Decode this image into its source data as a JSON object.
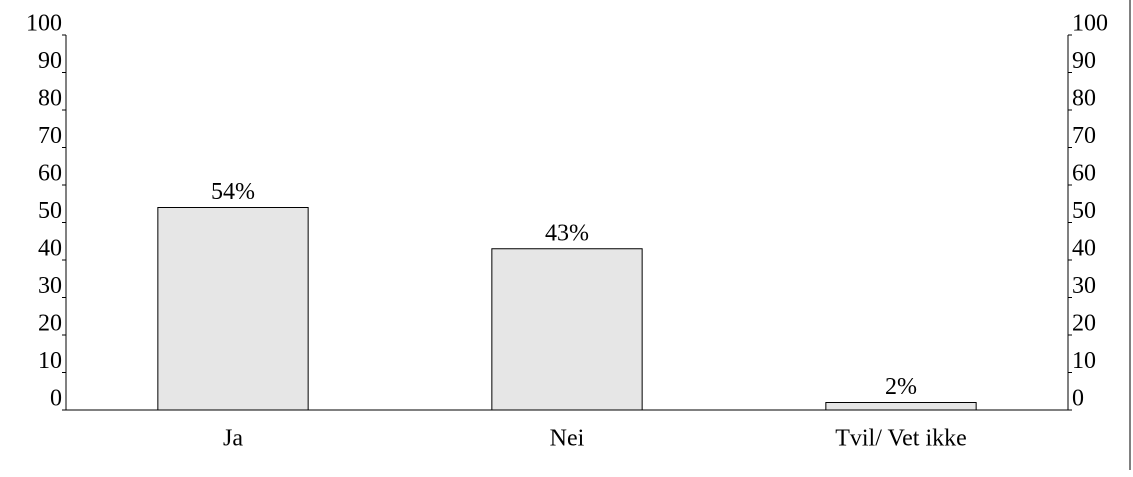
{
  "chart_data": {
    "type": "bar",
    "categories": [
      "Ja",
      "Nei",
      "Tvil/ Vet ikke"
    ],
    "values": [
      54,
      43,
      2
    ],
    "value_labels": [
      "54%",
      "43%",
      "2%"
    ],
    "color": "#e6e6e6",
    "ylim": [
      0,
      100
    ],
    "yticks": [
      0,
      10,
      20,
      30,
      40,
      50,
      60,
      70,
      80,
      90,
      100
    ],
    "y2lim": [
      0,
      100
    ],
    "y2ticks": [
      0,
      10,
      20,
      30,
      40,
      50,
      60,
      70,
      80,
      90,
      100
    ],
    "grid": false
  }
}
